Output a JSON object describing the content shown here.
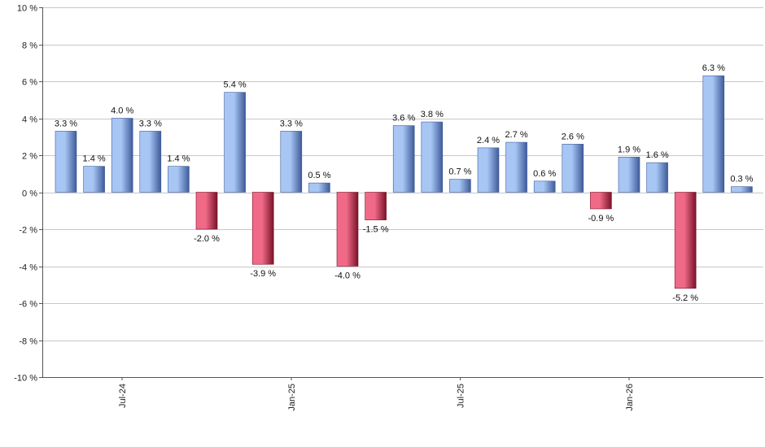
{
  "chart_data": {
    "type": "bar",
    "title": "",
    "xlabel": "",
    "ylabel": "",
    "ylim": [
      -10,
      10
    ],
    "y_ticks": [
      {
        "value": 10,
        "label": "10 %"
      },
      {
        "value": 8,
        "label": "8 %"
      },
      {
        "value": 6,
        "label": "6 %"
      },
      {
        "value": 4,
        "label": "4 %"
      },
      {
        "value": 2,
        "label": "2 %"
      },
      {
        "value": 0,
        "label": "0 %"
      },
      {
        "value": -2,
        "label": "-2 %"
      },
      {
        "value": -4,
        "label": "-4 %"
      },
      {
        "value": -6,
        "label": "-6 %"
      },
      {
        "value": -8,
        "label": "-8 %"
      },
      {
        "value": -10,
        "label": "-10 %"
      }
    ],
    "x_ticks": [
      {
        "index": 2,
        "label": "Jul-24"
      },
      {
        "index": 8,
        "label": "Jan-25"
      },
      {
        "index": 14,
        "label": "Jul-25"
      },
      {
        "index": 20,
        "label": "Jan-26"
      }
    ],
    "values": [
      3.3,
      1.4,
      4.0,
      3.3,
      1.4,
      -2.0,
      5.4,
      -3.9,
      3.3,
      0.5,
      -4.0,
      -1.5,
      3.6,
      3.8,
      0.7,
      2.4,
      2.7,
      0.6,
      2.6,
      -0.9,
      1.9,
      1.6,
      -5.2,
      6.3,
      0.3
    ],
    "value_labels": [
      "3.3 %",
      "1.4 %",
      "4.0 %",
      "3.3 %",
      "1.4 %",
      "-2.0 %",
      "5.4 %",
      "-3.9 %",
      "3.3 %",
      "0.5 %",
      "-4.0 %",
      "-1.5 %",
      "3.6 %",
      "3.8 %",
      "0.7 %",
      "2.4 %",
      "2.7 %",
      "0.6 %",
      "2.6 %",
      "-0.9 %",
      "1.9 %",
      "1.6 %",
      "-5.2 %",
      "6.3 %",
      "0.3 %"
    ],
    "grid": true,
    "legend": "none",
    "colors": {
      "positive_light": "#a8c6f4",
      "positive_dark": "#3e5b9a",
      "negative_light": "#f06a88",
      "negative_dark": "#7a1228"
    }
  }
}
